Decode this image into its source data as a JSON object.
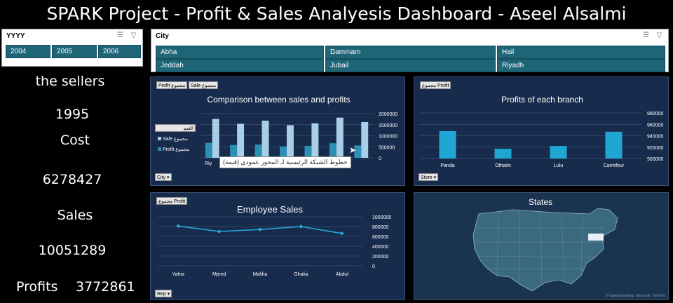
{
  "dashboard": {
    "title": "SPARK Project - Profit & Sales Analyesis Dashboard - Aseel Alsalmi"
  },
  "year_slicer": {
    "header": "YYYY",
    "items": [
      "2004",
      "2005",
      "2006"
    ]
  },
  "city_slicer": {
    "header": "City",
    "items": [
      "Abha",
      "Dammam",
      "Hail",
      "Jeddah",
      "Jubail",
      "Riyadh"
    ]
  },
  "kpis": {
    "sellers_label": "the sellers",
    "sellers_value": "1995",
    "cost_label": "Cost",
    "cost_value": "6278427",
    "sales_label": "Sales",
    "sales_value": "10051289",
    "profits_label": "Profits",
    "profits_value": "3772861"
  },
  "comparison_chart": {
    "field_buttons": [
      "Profit مجموع",
      "Sale مجموع"
    ],
    "legend_header": "القيم",
    "legend_items": [
      "Sale مجموع",
      "Profit مجموع"
    ],
    "axis_filter": "City",
    "tooltip": "خطوط الشبكة الرئيسية لـ المحور عمودي (قيمة)",
    "first_category_label": "Riy",
    "colors": {
      "sale": "#a9cfe8",
      "profit": "#2e8fb5"
    }
  },
  "branch_chart": {
    "field_button": "مجموع Profit",
    "axis_filter": "Store",
    "color": "#1fa6d2"
  },
  "employee_chart": {
    "field_button": "مجموع Profit",
    "axis_filter": "Rep",
    "color": "#29a9dc"
  },
  "map_panel": {
    "title": "States",
    "attribution": "© OpenStreetMap, Microsoft, TomTom"
  },
  "chart_data": [
    {
      "type": "bar",
      "title": "Comparison between sales and profits",
      "categories": [
        "Riyadh",
        "",
        "",
        "",
        "",
        "",
        ""
      ],
      "series": [
        {
          "name": "Sale مجموع",
          "values": [
            1760000,
            1540000,
            1680000,
            1480000,
            1560000,
            1820000,
            1620000
          ]
        },
        {
          "name": "Profit مجموع",
          "values": [
            680000,
            580000,
            600000,
            520000,
            540000,
            660000,
            560000
          ]
        }
      ],
      "ylim": [
        0,
        2000000
      ],
      "yticks": [
        0,
        500000,
        1000000,
        1500000,
        2000000
      ]
    },
    {
      "type": "bar",
      "title": "Profits of each branch",
      "categories": [
        "Panda",
        "Othaim",
        "Lulu",
        "Carrefour"
      ],
      "values": [
        948000,
        917000,
        922000,
        947000
      ],
      "ylim": [
        900000,
        980000
      ],
      "yticks": [
        900000,
        920000,
        940000,
        960000,
        980000
      ]
    },
    {
      "type": "line",
      "title": "Employee Sales",
      "categories": [
        "Yahia",
        "Mjeed",
        "Maliha",
        "Ghalia",
        "Abdul"
      ],
      "values": [
        810000,
        700000,
        740000,
        800000,
        660000
      ],
      "ylim": [
        0,
        1000000
      ],
      "yticks": [
        0,
        200000,
        400000,
        600000,
        800000,
        1000000
      ]
    }
  ]
}
